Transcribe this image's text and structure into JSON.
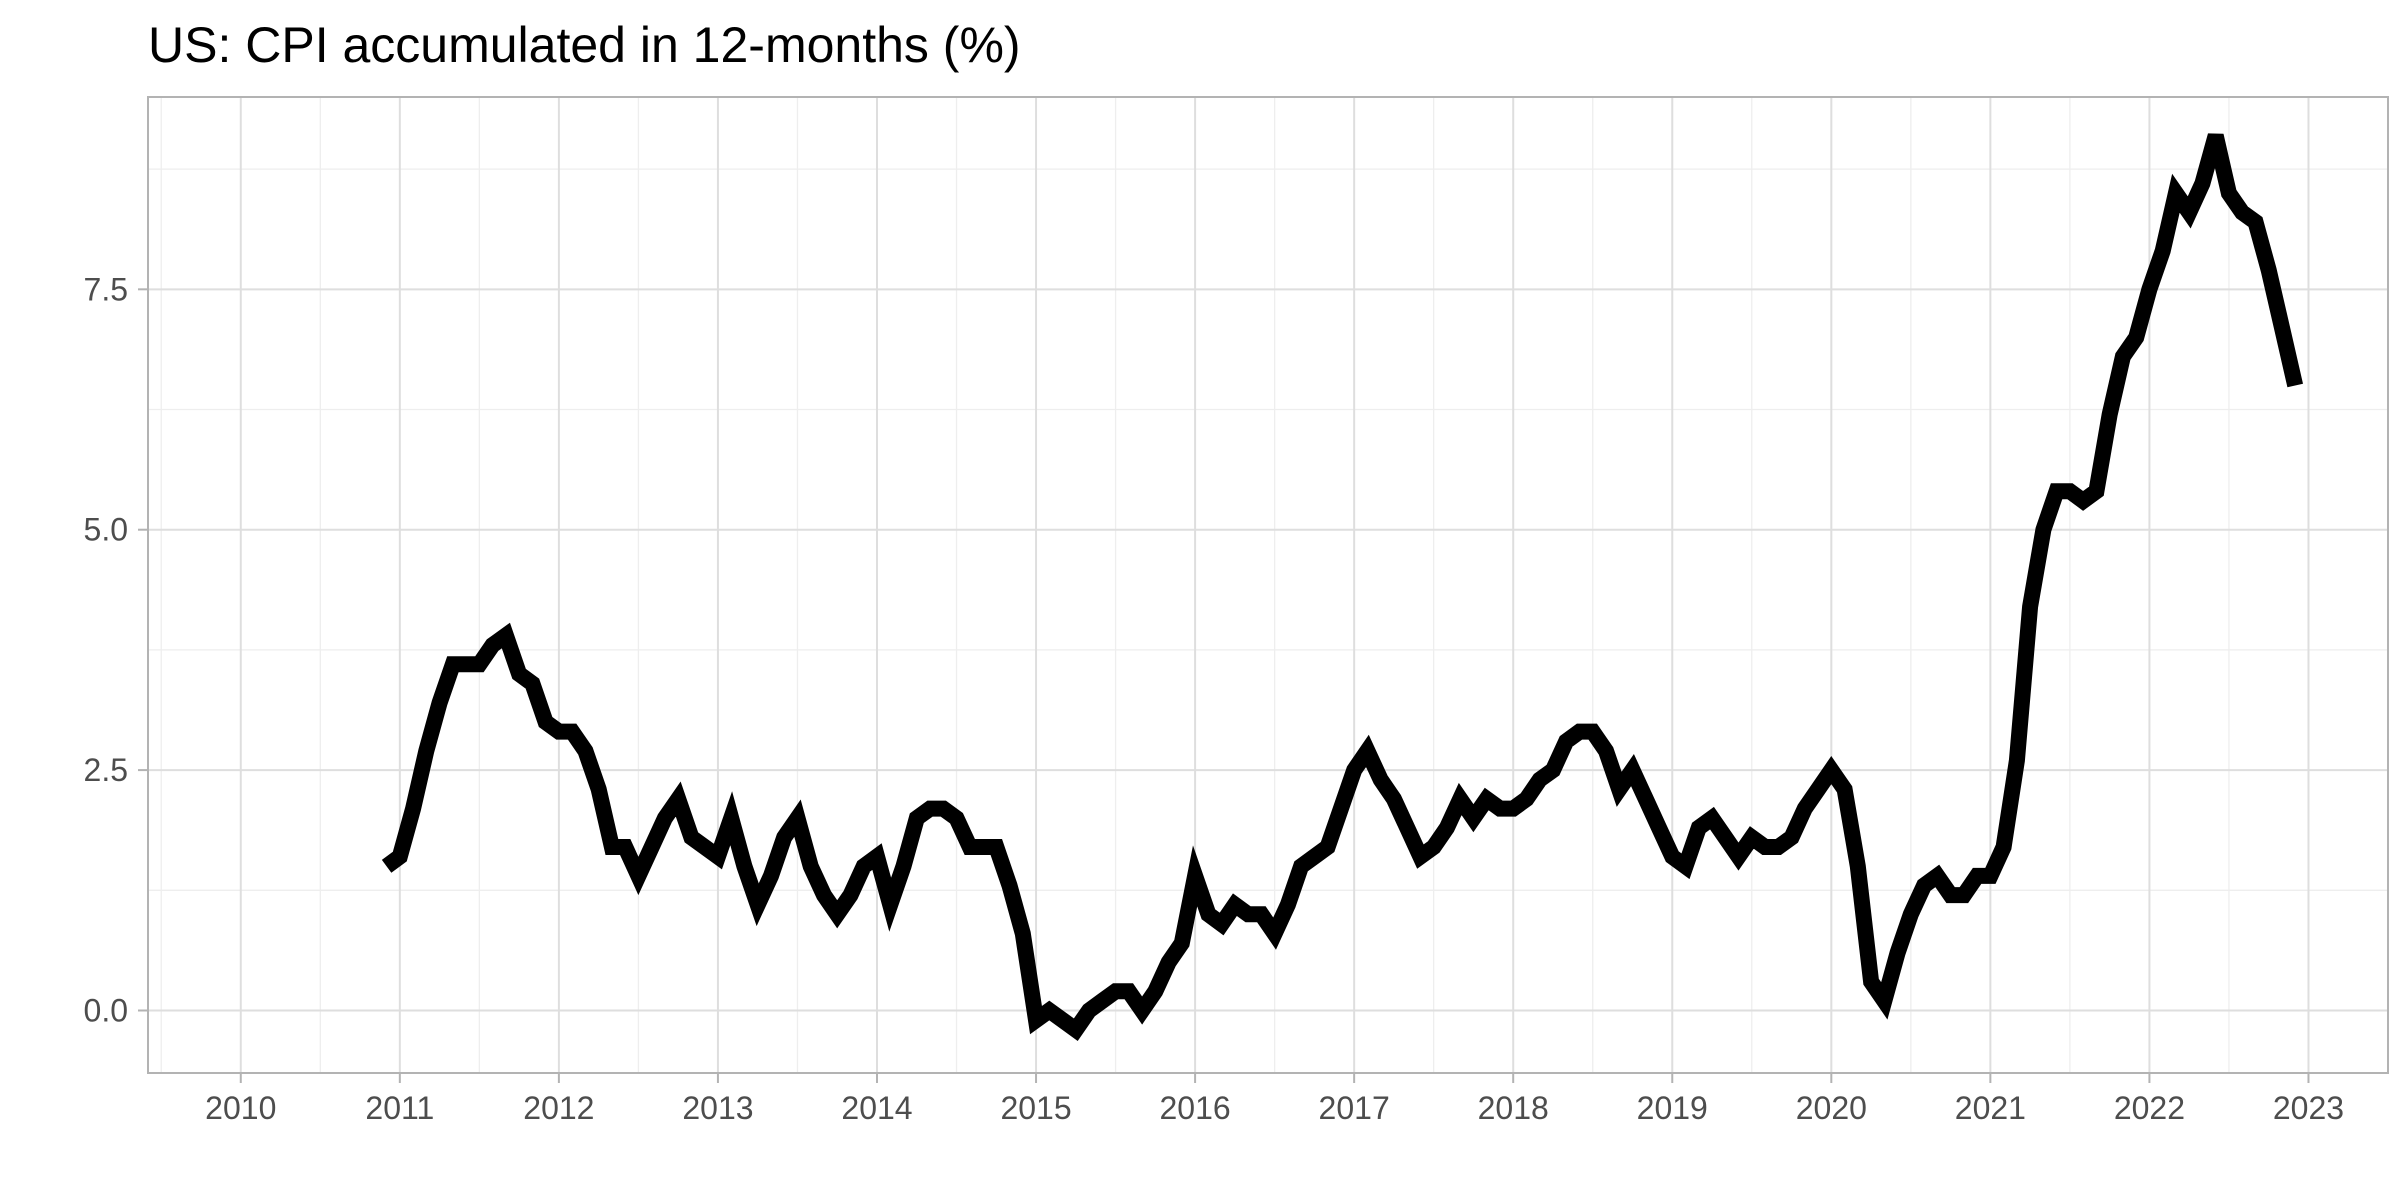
{
  "chart_data": {
    "type": "line",
    "title": "US: CPI accumulated in 12-months (%)",
    "xlabel": "",
    "ylabel": "",
    "x_ticks": [
      "2010",
      "2011",
      "2012",
      "2013",
      "2014",
      "2015",
      "2016",
      "2017",
      "2018",
      "2019",
      "2020",
      "2021",
      "2022",
      "2023"
    ],
    "y_ticks": [
      "0.0",
      "2.5",
      "5.0",
      "7.5"
    ],
    "xlim": [
      "2009-06",
      "2023-07"
    ],
    "ylim": [
      -0.65,
      9.5
    ],
    "grid": true,
    "legend": "none",
    "line_color": "#000000",
    "series": [
      {
        "x": [
          "2010-12",
          "2011-01",
          "2011-02",
          "2011-03",
          "2011-04",
          "2011-05",
          "2011-06",
          "2011-07",
          "2011-08",
          "2011-09",
          "2011-10",
          "2011-11",
          "2011-12",
          "2012-01",
          "2012-02",
          "2012-03",
          "2012-04",
          "2012-05",
          "2012-06",
          "2012-07",
          "2012-08",
          "2012-09",
          "2012-10",
          "2012-11",
          "2012-12",
          "2013-01",
          "2013-02",
          "2013-03",
          "2013-04",
          "2013-05",
          "2013-06",
          "2013-07",
          "2013-08",
          "2013-09",
          "2013-10",
          "2013-11",
          "2013-12",
          "2014-01",
          "2014-02",
          "2014-03",
          "2014-04",
          "2014-05",
          "2014-06",
          "2014-07",
          "2014-08",
          "2014-09",
          "2014-10",
          "2014-11",
          "2014-12",
          "2015-01",
          "2015-02",
          "2015-03",
          "2015-04",
          "2015-05",
          "2015-06",
          "2015-07",
          "2015-08",
          "2015-09",
          "2015-10",
          "2015-11",
          "2015-12",
          "2016-01",
          "2016-02",
          "2016-03",
          "2016-04",
          "2016-05",
          "2016-06",
          "2016-07",
          "2016-08",
          "2016-09",
          "2016-10",
          "2016-11",
          "2016-12",
          "2017-01",
          "2017-02",
          "2017-03",
          "2017-04",
          "2017-05",
          "2017-06",
          "2017-07",
          "2017-08",
          "2017-09",
          "2017-10",
          "2017-11",
          "2017-12",
          "2018-01",
          "2018-02",
          "2018-03",
          "2018-04",
          "2018-05",
          "2018-06",
          "2018-07",
          "2018-08",
          "2018-09",
          "2018-10",
          "2018-11",
          "2018-12",
          "2019-01",
          "2019-02",
          "2019-03",
          "2019-04",
          "2019-05",
          "2019-06",
          "2019-07",
          "2019-08",
          "2019-09",
          "2019-10",
          "2019-11",
          "2019-12",
          "2020-01",
          "2020-02",
          "2020-03",
          "2020-04",
          "2020-05",
          "2020-06",
          "2020-07",
          "2020-08",
          "2020-09",
          "2020-10",
          "2020-11",
          "2020-12",
          "2021-01",
          "2021-02",
          "2021-03",
          "2021-04",
          "2021-05",
          "2021-06",
          "2021-07",
          "2021-08",
          "2021-09",
          "2021-10",
          "2021-11",
          "2021-12",
          "2022-01",
          "2022-02",
          "2022-03",
          "2022-04",
          "2022-05",
          "2022-06",
          "2022-07",
          "2022-08",
          "2022-09",
          "2022-10",
          "2022-11",
          "2022-12"
        ],
        "values": [
          1.5,
          1.6,
          2.1,
          2.7,
          3.2,
          3.6,
          3.6,
          3.6,
          3.8,
          3.9,
          3.5,
          3.4,
          3.0,
          2.9,
          2.9,
          2.7,
          2.3,
          1.7,
          1.7,
          1.4,
          1.7,
          2.0,
          2.2,
          1.8,
          1.7,
          1.6,
          2.0,
          1.5,
          1.1,
          1.4,
          1.8,
          2.0,
          1.5,
          1.2,
          1.0,
          1.2,
          1.5,
          1.6,
          1.1,
          1.5,
          2.0,
          2.1,
          2.1,
          2.0,
          1.7,
          1.7,
          1.7,
          1.3,
          0.8,
          -0.1,
          0.0,
          -0.1,
          -0.2,
          0.0,
          0.1,
          0.2,
          0.2,
          0.0,
          0.2,
          0.5,
          0.7,
          1.4,
          1.0,
          0.9,
          1.1,
          1.0,
          1.0,
          0.8,
          1.1,
          1.5,
          1.6,
          1.7,
          2.1,
          2.5,
          2.7,
          2.4,
          2.2,
          1.9,
          1.6,
          1.7,
          1.9,
          2.2,
          2.0,
          2.2,
          2.1,
          2.1,
          2.2,
          2.4,
          2.5,
          2.8,
          2.9,
          2.9,
          2.7,
          2.3,
          2.5,
          2.2,
          1.9,
          1.6,
          1.5,
          1.9,
          2.0,
          1.8,
          1.6,
          1.8,
          1.7,
          1.7,
          1.8,
          2.1,
          2.3,
          2.5,
          2.3,
          1.5,
          0.3,
          0.1,
          0.6,
          1.0,
          1.3,
          1.4,
          1.2,
          1.2,
          1.4,
          1.4,
          1.7,
          2.6,
          4.2,
          5.0,
          5.4,
          5.4,
          5.3,
          5.4,
          6.2,
          6.8,
          7.0,
          7.5,
          7.9,
          8.5,
          8.3,
          8.6,
          9.1,
          8.5,
          8.3,
          8.2,
          7.7,
          7.1,
          6.5
        ]
      }
    ]
  }
}
